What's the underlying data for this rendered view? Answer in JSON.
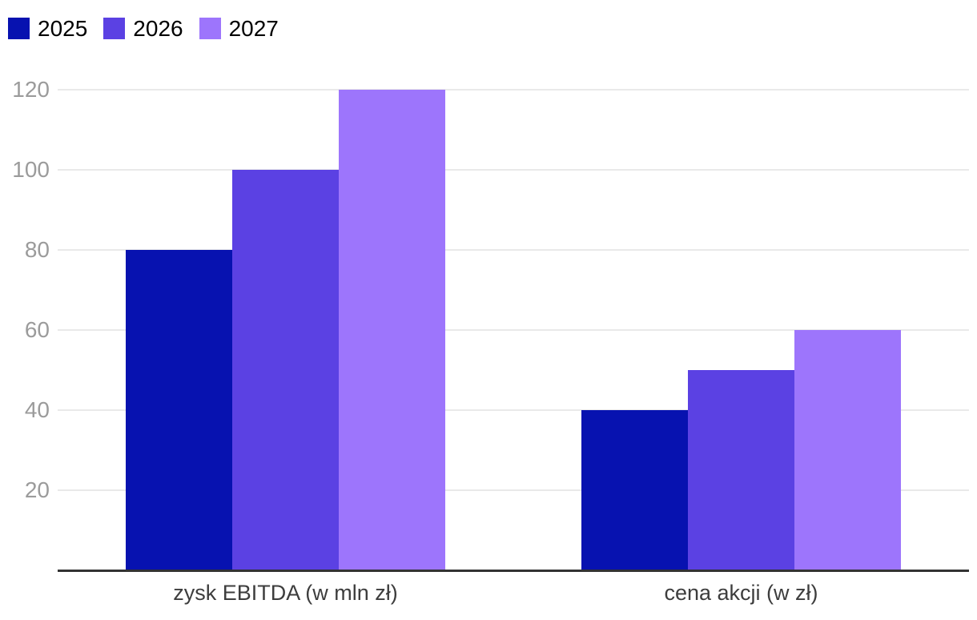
{
  "chart_data": {
    "type": "bar",
    "title": "",
    "categories": [
      "zysk EBITDA (w mln zł)",
      "cena akcji (w zł)"
    ],
    "series": [
      {
        "name": "2025",
        "color": "#0712b0",
        "values": [
          80,
          40
        ]
      },
      {
        "name": "2026",
        "color": "#5b41e3",
        "values": [
          100,
          50
        ]
      },
      {
        "name": "2027",
        "color": "#9d75fc",
        "values": [
          120,
          60
        ]
      }
    ],
    "yticks": [
      20,
      40,
      60,
      80,
      100,
      120
    ],
    "ylim": [
      0,
      120
    ],
    "xlabel": "",
    "ylabel": "",
    "grid": "horizontal",
    "legend_position": "top-left",
    "colors": {
      "gridline": "#e9e9e9",
      "axis_line": "#333333",
      "ytick_text": "#9b9b9b",
      "category_text": "#3d3d3d",
      "legend_text": "#000000",
      "background": "#ffffff"
    }
  }
}
